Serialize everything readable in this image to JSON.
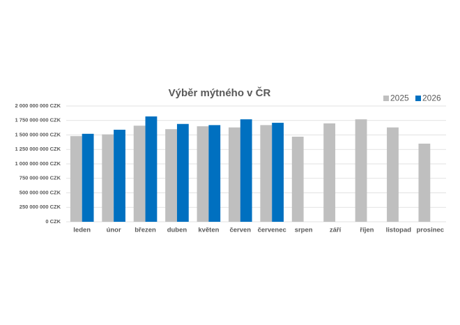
{
  "chart_data": {
    "type": "bar",
    "title": "Výběr mýtného v ČR",
    "categories": [
      "leden",
      "únor",
      "březen",
      "duben",
      "květen",
      "červen",
      "červenec",
      "srpen",
      "září",
      "říjen",
      "listopad",
      "prosinec"
    ],
    "series": [
      {
        "name": "2025",
        "color": "#bfbfbf",
        "values": [
          1480000000,
          1510000000,
          1660000000,
          1600000000,
          1650000000,
          1630000000,
          1670000000,
          1470000000,
          1700000000,
          1770000000,
          1630000000,
          1350000000
        ]
      },
      {
        "name": "2026",
        "color": "#0070c0",
        "values": [
          1520000000,
          1590000000,
          1820000000,
          1690000000,
          1670000000,
          1770000000,
          1710000000,
          null,
          null,
          null,
          null,
          null
        ]
      }
    ],
    "ylim": [
      0,
      2000000000
    ],
    "yticks": [
      {
        "value": 0,
        "label": "0 CZK"
      },
      {
        "value": 250000000,
        "label": "250 000 000 CZK"
      },
      {
        "value": 500000000,
        "label": "500 000 000 CZK"
      },
      {
        "value": 750000000,
        "label": "750 000 000 CZK"
      },
      {
        "value": 1000000000,
        "label": "1 000 000 000 CZK"
      },
      {
        "value": 1250000000,
        "label": "1 250 000 000 CZK"
      },
      {
        "value": 1500000000,
        "label": "1 500 000 000 CZK"
      },
      {
        "value": 1750000000,
        "label": "1 750 000 000 CZK"
      },
      {
        "value": 2000000000,
        "label": "2 000 000 000 CZK"
      }
    ],
    "grid": true,
    "legend": "top-right"
  }
}
